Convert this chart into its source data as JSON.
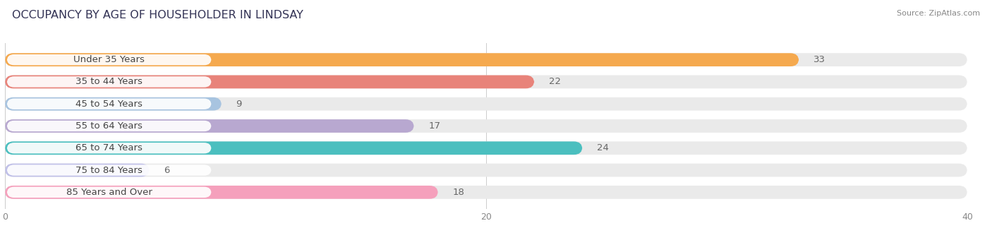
{
  "title": "OCCUPANCY BY AGE OF HOUSEHOLDER IN LINDSAY",
  "source": "Source: ZipAtlas.com",
  "categories": [
    "Under 35 Years",
    "35 to 44 Years",
    "45 to 54 Years",
    "55 to 64 Years",
    "65 to 74 Years",
    "75 to 84 Years",
    "85 Years and Over"
  ],
  "values": [
    33,
    22,
    9,
    17,
    24,
    6,
    18
  ],
  "bar_colors": [
    "#F5A94E",
    "#E8837A",
    "#A8C4E0",
    "#B8A8D0",
    "#4BBFBF",
    "#C0C0E8",
    "#F5A0BC"
  ],
  "bar_bg_color": "#EAEAEA",
  "xlim": [
    0,
    40
  ],
  "xticks": [
    0,
    20,
    40
  ],
  "title_fontsize": 11.5,
  "label_fontsize": 9.5,
  "value_fontsize": 9.5,
  "bar_height": 0.6,
  "background_color": "#FFFFFF",
  "label_text_color": "#444444",
  "value_text_color": "#666666",
  "title_color": "#333355"
}
